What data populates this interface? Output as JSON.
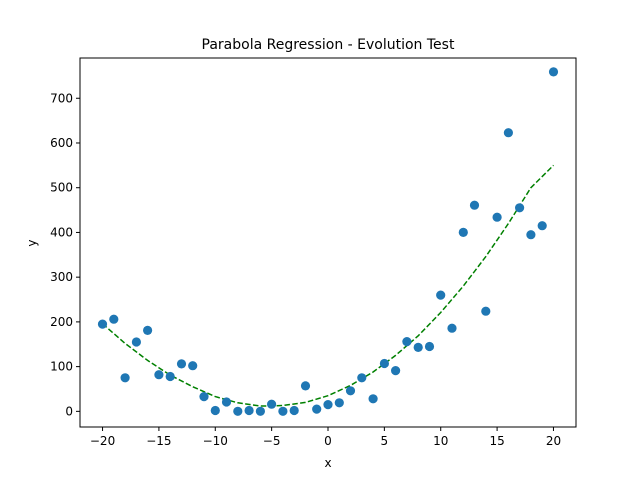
{
  "chart_data": {
    "type": "scatter",
    "title": "Parabola Regression - Evolution Test",
    "xlabel": "x",
    "ylabel": "y",
    "xlim": [
      -22,
      22
    ],
    "ylim": [
      -35,
      790
    ],
    "xticks": [
      -20,
      -15,
      -10,
      -5,
      0,
      5,
      10,
      15,
      20
    ],
    "yticks": [
      0,
      100,
      200,
      300,
      400,
      500,
      600,
      700
    ],
    "grid": false,
    "colors": {
      "points": "#1f77b4",
      "fit": "#008000"
    },
    "series": [
      {
        "kind": "points",
        "x": [
          -20,
          -19,
          -18,
          -17,
          -16,
          -15,
          -14,
          -13,
          -12,
          -11,
          -10,
          -9,
          -8,
          -7,
          -6,
          -5,
          -4,
          -3,
          -2,
          -1,
          0,
          1,
          2,
          3,
          4,
          5,
          6,
          7,
          8,
          9,
          10,
          11,
          12,
          13,
          14,
          15,
          16,
          17,
          18,
          19,
          20
        ],
        "y": [
          195,
          206,
          75,
          155,
          181,
          82,
          78,
          106,
          102,
          33,
          2,
          21,
          0,
          2,
          0,
          16,
          0,
          2,
          57,
          5,
          15,
          19,
          46,
          75,
          28,
          107,
          91,
          156,
          143,
          145,
          260,
          186,
          400,
          461,
          224,
          434,
          623,
          455,
          395,
          415,
          759
        ]
      },
      {
        "kind": "fit",
        "x": [
          -20,
          -18,
          -16,
          -14,
          -12,
          -10,
          -8,
          -6,
          -5,
          -4,
          -2,
          0,
          2,
          4,
          6,
          8,
          10,
          12,
          14,
          16,
          18,
          20
        ],
        "y": [
          196,
          152,
          114,
          81,
          55,
          33,
          19,
          12,
          12,
          13,
          20,
          35,
          58,
          88,
          125,
          169,
          221,
          280,
          346,
          420,
          500,
          550
        ]
      }
    ]
  }
}
